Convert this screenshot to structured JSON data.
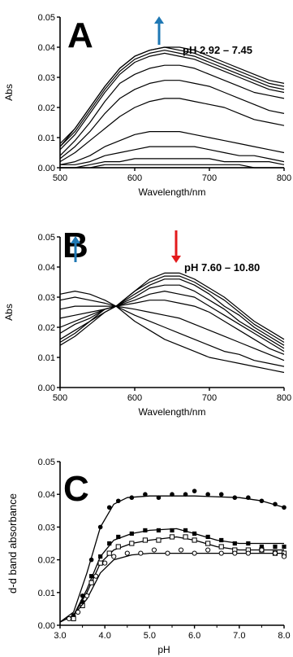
{
  "chart_data": [
    {
      "type": "line",
      "panel_label": "A",
      "annotation": "pH 2.92 – 7.45",
      "arrow_colors": {
        "up": "#1f78b4"
      },
      "xlabel": "Wavelength/nm",
      "ylabel": "Abs",
      "xlim": [
        500,
        800
      ],
      "ylim": [
        0,
        0.05
      ],
      "xticks": [
        "500",
        "600",
        "700",
        "800"
      ],
      "yticks": [
        "0.00",
        "0.01",
        "0.02",
        "0.03",
        "0.04",
        "0.05"
      ],
      "x": [
        500,
        520,
        540,
        560,
        580,
        600,
        620,
        640,
        660,
        680,
        700,
        720,
        740,
        760,
        780,
        800
      ],
      "series": [
        {
          "values": [
            0.0,
            0.0,
            0.0,
            0.0,
            0.0,
            0.0,
            0.0,
            0.0,
            0.0,
            0.0,
            0.0,
            0.0,
            0.0,
            0.0,
            0.0,
            0.0
          ]
        },
        {
          "values": [
            0.0,
            0.0,
            0.0,
            0.001,
            0.001,
            0.001,
            0.001,
            0.001,
            0.001,
            0.001,
            0.001,
            0.001,
            0.001,
            0.0,
            0.0,
            0.0
          ]
        },
        {
          "values": [
            0.0,
            0.0,
            0.001,
            0.002,
            0.002,
            0.003,
            0.003,
            0.003,
            0.003,
            0.003,
            0.003,
            0.002,
            0.002,
            0.002,
            0.002,
            0.001
          ]
        },
        {
          "values": [
            0.001,
            0.001,
            0.002,
            0.004,
            0.005,
            0.006,
            0.007,
            0.007,
            0.007,
            0.007,
            0.006,
            0.005,
            0.004,
            0.004,
            0.003,
            0.002
          ]
        },
        {
          "values": [
            0.001,
            0.002,
            0.004,
            0.007,
            0.009,
            0.011,
            0.012,
            0.012,
            0.012,
            0.011,
            0.01,
            0.009,
            0.008,
            0.007,
            0.006,
            0.005
          ]
        },
        {
          "values": [
            0.002,
            0.005,
            0.009,
            0.013,
            0.017,
            0.02,
            0.022,
            0.023,
            0.023,
            0.022,
            0.021,
            0.02,
            0.018,
            0.016,
            0.015,
            0.014
          ]
        },
        {
          "values": [
            0.003,
            0.007,
            0.012,
            0.018,
            0.023,
            0.026,
            0.028,
            0.029,
            0.029,
            0.028,
            0.027,
            0.025,
            0.023,
            0.021,
            0.019,
            0.018
          ]
        },
        {
          "values": [
            0.004,
            0.009,
            0.015,
            0.022,
            0.028,
            0.031,
            0.033,
            0.034,
            0.034,
            0.033,
            0.031,
            0.029,
            0.027,
            0.025,
            0.024,
            0.023
          ]
        },
        {
          "values": [
            0.006,
            0.011,
            0.018,
            0.025,
            0.031,
            0.035,
            0.037,
            0.038,
            0.037,
            0.036,
            0.034,
            0.032,
            0.03,
            0.028,
            0.026,
            0.025
          ]
        },
        {
          "values": [
            0.007,
            0.012,
            0.019,
            0.026,
            0.032,
            0.036,
            0.038,
            0.039,
            0.038,
            0.037,
            0.035,
            0.033,
            0.031,
            0.029,
            0.027,
            0.026
          ]
        },
        {
          "values": [
            0.007,
            0.013,
            0.02,
            0.027,
            0.033,
            0.037,
            0.039,
            0.04,
            0.039,
            0.038,
            0.036,
            0.034,
            0.032,
            0.03,
            0.028,
            0.027
          ]
        },
        {
          "values": [
            0.008,
            0.013,
            0.02,
            0.027,
            0.033,
            0.037,
            0.039,
            0.04,
            0.04,
            0.039,
            0.037,
            0.035,
            0.033,
            0.031,
            0.029,
            0.028
          ]
        }
      ]
    },
    {
      "type": "line",
      "panel_label": "B",
      "annotation": "pH 7.60  – 10.80",
      "arrow_colors": {
        "up": "#1f78b4",
        "down": "#e31a1c"
      },
      "xlabel": "Wavelength/nm",
      "ylabel": "Abs",
      "xlim": [
        500,
        800
      ],
      "ylim": [
        0,
        0.05
      ],
      "xticks": [
        "500",
        "600",
        "700",
        "800"
      ],
      "yticks": [
        "0.00",
        "0.01",
        "0.02",
        "0.03",
        "0.04",
        "0.05"
      ],
      "x": [
        500,
        520,
        540,
        560,
        575,
        600,
        620,
        640,
        660,
        680,
        700,
        720,
        740,
        760,
        780,
        800
      ],
      "series": [
        {
          "values": [
            0.014,
            0.017,
            0.021,
            0.025,
            0.027,
            0.032,
            0.036,
            0.038,
            0.038,
            0.036,
            0.033,
            0.03,
            0.026,
            0.022,
            0.019,
            0.016
          ]
        },
        {
          "values": [
            0.015,
            0.018,
            0.022,
            0.025,
            0.027,
            0.032,
            0.035,
            0.037,
            0.037,
            0.035,
            0.032,
            0.029,
            0.025,
            0.021,
            0.018,
            0.015
          ]
        },
        {
          "values": [
            0.016,
            0.019,
            0.022,
            0.026,
            0.027,
            0.031,
            0.034,
            0.036,
            0.036,
            0.034,
            0.031,
            0.027,
            0.024,
            0.02,
            0.017,
            0.014
          ]
        },
        {
          "values": [
            0.018,
            0.021,
            0.023,
            0.026,
            0.027,
            0.03,
            0.033,
            0.034,
            0.034,
            0.032,
            0.029,
            0.026,
            0.022,
            0.019,
            0.016,
            0.013
          ]
        },
        {
          "values": [
            0.02,
            0.022,
            0.024,
            0.026,
            0.027,
            0.029,
            0.031,
            0.032,
            0.031,
            0.03,
            0.027,
            0.024,
            0.021,
            0.018,
            0.015,
            0.012
          ]
        },
        {
          "values": [
            0.023,
            0.024,
            0.025,
            0.026,
            0.027,
            0.028,
            0.029,
            0.029,
            0.028,
            0.027,
            0.025,
            0.022,
            0.019,
            0.016,
            0.013,
            0.011
          ]
        },
        {
          "values": [
            0.026,
            0.027,
            0.027,
            0.027,
            0.027,
            0.026,
            0.025,
            0.024,
            0.023,
            0.021,
            0.019,
            0.017,
            0.015,
            0.013,
            0.011,
            0.009
          ]
        },
        {
          "values": [
            0.029,
            0.03,
            0.029,
            0.028,
            0.027,
            0.024,
            0.022,
            0.02,
            0.018,
            0.016,
            0.014,
            0.012,
            0.011,
            0.009,
            0.008,
            0.007
          ]
        },
        {
          "values": [
            0.031,
            0.032,
            0.031,
            0.029,
            0.027,
            0.022,
            0.019,
            0.016,
            0.014,
            0.012,
            0.01,
            0.009,
            0.008,
            0.007,
            0.006,
            0.005
          ]
        }
      ]
    },
    {
      "type": "scatter",
      "panel_label": "C",
      "xlabel": "pH",
      "ylabel": "d-d band absorbance",
      "xlim": [
        3.0,
        8.0
      ],
      "ylim": [
        0,
        0.05
      ],
      "xticks": [
        "3.0",
        "4.0",
        "5.0",
        "6.0",
        "7.0",
        "8.0"
      ],
      "yticks": [
        "0.00",
        "0.01",
        "0.02",
        "0.03",
        "0.04",
        "0.05"
      ],
      "series": [
        {
          "marker": "filled-circle",
          "points": [
            [
              3.3,
              0.003
            ],
            [
              3.5,
              0.009
            ],
            [
              3.7,
              0.02
            ],
            [
              3.9,
              0.03
            ],
            [
              4.1,
              0.036
            ],
            [
              4.3,
              0.038
            ],
            [
              4.6,
              0.039
            ],
            [
              4.9,
              0.04
            ],
            [
              5.2,
              0.039
            ],
            [
              5.5,
              0.04
            ],
            [
              5.8,
              0.04
            ],
            [
              6.0,
              0.041
            ],
            [
              6.3,
              0.04
            ],
            [
              6.6,
              0.04
            ],
            [
              6.9,
              0.039
            ],
            [
              7.2,
              0.039
            ],
            [
              7.5,
              0.038
            ],
            [
              7.8,
              0.037
            ],
            [
              8.0,
              0.036
            ]
          ],
          "fit": [
            [
              3.0,
              0.001
            ],
            [
              3.3,
              0.004
            ],
            [
              3.6,
              0.016
            ],
            [
              3.9,
              0.03
            ],
            [
              4.2,
              0.037
            ],
            [
              4.5,
              0.039
            ],
            [
              5.0,
              0.0395
            ],
            [
              6.0,
              0.0395
            ],
            [
              7.0,
              0.039
            ],
            [
              7.5,
              0.038
            ],
            [
              8.0,
              0.036
            ]
          ]
        },
        {
          "marker": "filled-square",
          "points": [
            [
              3.3,
              0.002
            ],
            [
              3.5,
              0.007
            ],
            [
              3.7,
              0.015
            ],
            [
              3.9,
              0.021
            ],
            [
              4.1,
              0.025
            ],
            [
              4.3,
              0.027
            ],
            [
              4.6,
              0.028
            ],
            [
              4.9,
              0.029
            ],
            [
              5.2,
              0.029
            ],
            [
              5.5,
              0.029
            ],
            [
              5.8,
              0.029
            ],
            [
              6.0,
              0.028
            ],
            [
              6.3,
              0.027
            ],
            [
              6.6,
              0.026
            ],
            [
              6.9,
              0.025
            ],
            [
              7.2,
              0.025
            ],
            [
              7.5,
              0.024
            ],
            [
              7.8,
              0.024
            ],
            [
              8.0,
              0.024
            ]
          ],
          "fit": [
            [
              3.0,
              0.001
            ],
            [
              3.3,
              0.003
            ],
            [
              3.6,
              0.011
            ],
            [
              3.9,
              0.021
            ],
            [
              4.2,
              0.026
            ],
            [
              4.6,
              0.028
            ],
            [
              5.0,
              0.029
            ],
            [
              5.6,
              0.0295
            ],
            [
              6.0,
              0.028
            ],
            [
              6.5,
              0.026
            ],
            [
              7.0,
              0.025
            ],
            [
              8.0,
              0.025
            ]
          ]
        },
        {
          "marker": "open-square",
          "points": [
            [
              3.3,
              0.002
            ],
            [
              3.5,
              0.006
            ],
            [
              3.7,
              0.013
            ],
            [
              3.9,
              0.019
            ],
            [
              4.1,
              0.022
            ],
            [
              4.3,
              0.024
            ],
            [
              4.6,
              0.025
            ],
            [
              4.9,
              0.026
            ],
            [
              5.2,
              0.026
            ],
            [
              5.5,
              0.027
            ],
            [
              5.8,
              0.027
            ],
            [
              6.0,
              0.026
            ],
            [
              6.3,
              0.025
            ],
            [
              6.6,
              0.024
            ],
            [
              6.9,
              0.023
            ],
            [
              7.2,
              0.023
            ],
            [
              7.5,
              0.023
            ],
            [
              7.8,
              0.022
            ],
            [
              8.0,
              0.022
            ]
          ],
          "fit": [
            [
              3.0,
              0.001
            ],
            [
              3.3,
              0.003
            ],
            [
              3.6,
              0.01
            ],
            [
              3.9,
              0.019
            ],
            [
              4.2,
              0.023
            ],
            [
              4.6,
              0.025
            ],
            [
              5.0,
              0.026
            ],
            [
              5.6,
              0.027
            ],
            [
              6.0,
              0.026
            ],
            [
              6.5,
              0.024
            ],
            [
              7.0,
              0.023
            ],
            [
              8.0,
              0.023
            ]
          ]
        },
        {
          "marker": "open-circle",
          "points": [
            [
              3.2,
              0.002
            ],
            [
              3.4,
              0.004
            ],
            [
              3.6,
              0.009
            ],
            [
              3.8,
              0.015
            ],
            [
              4.0,
              0.019
            ],
            [
              4.2,
              0.021
            ],
            [
              4.5,
              0.022
            ],
            [
              4.8,
              0.022
            ],
            [
              5.1,
              0.023
            ],
            [
              5.4,
              0.022
            ],
            [
              5.7,
              0.023
            ],
            [
              6.0,
              0.022
            ],
            [
              6.3,
              0.023
            ],
            [
              6.6,
              0.022
            ],
            [
              6.9,
              0.022
            ],
            [
              7.2,
              0.022
            ],
            [
              7.5,
              0.023
            ],
            [
              7.8,
              0.022
            ],
            [
              8.0,
              0.021
            ]
          ],
          "fit": [
            [
              3.0,
              0.001
            ],
            [
              3.3,
              0.003
            ],
            [
              3.6,
              0.008
            ],
            [
              3.9,
              0.016
            ],
            [
              4.2,
              0.02
            ],
            [
              4.6,
              0.0215
            ],
            [
              5.0,
              0.022
            ],
            [
              6.0,
              0.022
            ],
            [
              7.0,
              0.022
            ],
            [
              8.0,
              0.022
            ]
          ]
        }
      ]
    }
  ]
}
